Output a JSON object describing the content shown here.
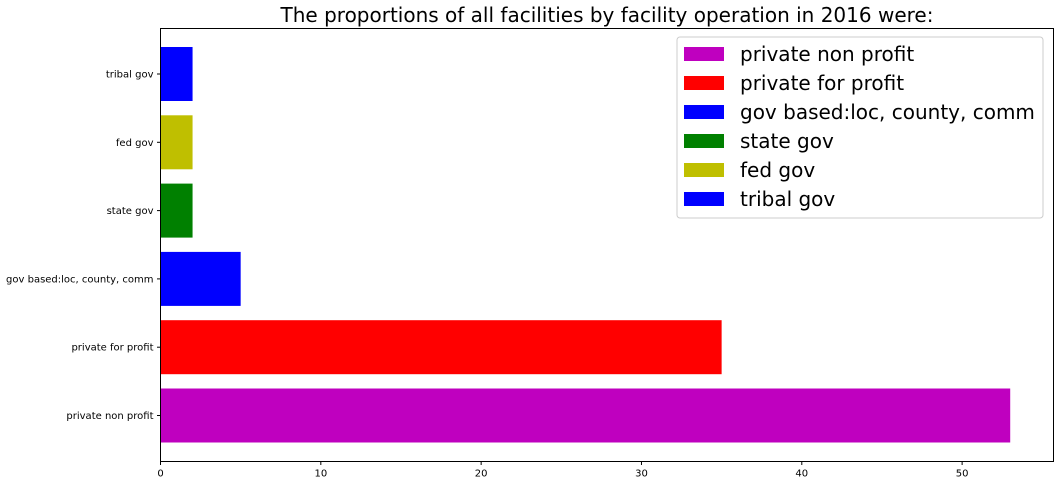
{
  "chart_data": {
    "type": "bar",
    "orientation": "horizontal",
    "title": "The proportions of all facilities by facility operation in 2016  were:",
    "xlabel": "",
    "ylabel": "",
    "xlim": [
      0,
      55.7
    ],
    "xticks": [
      0,
      10,
      20,
      30,
      40,
      50
    ],
    "categories": [
      "private non profit",
      "private for profit",
      "gov based:loc, county, comm",
      "state gov",
      "fed gov",
      "tribal gov"
    ],
    "values": [
      53,
      35,
      5,
      2,
      2,
      2
    ],
    "colors": [
      "#bf00bf",
      "#ff0000",
      "#0000ff",
      "#008000",
      "#bfbf00",
      "#0000ff"
    ],
    "grid": false,
    "legend": {
      "placement": "top-right",
      "entries": [
        "private non profit",
        "private for profit",
        "gov based:loc, county, comm",
        "state gov",
        "fed gov",
        "tribal gov"
      ]
    }
  }
}
